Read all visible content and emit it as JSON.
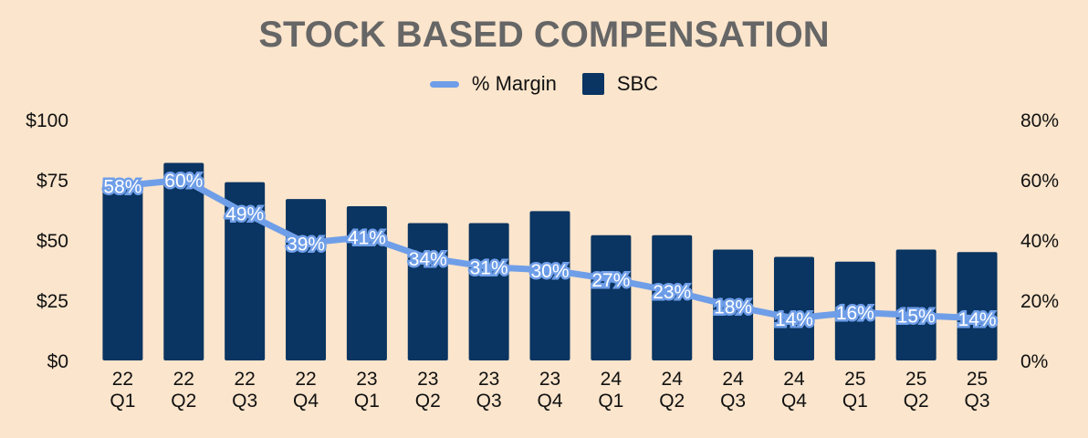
{
  "chart_data": {
    "type": "bar",
    "title": "STOCK BASED COMPENSATION",
    "categories": [
      [
        "22",
        "Q1"
      ],
      [
        "22",
        "Q2"
      ],
      [
        "22",
        "Q3"
      ],
      [
        "22",
        "Q4"
      ],
      [
        "23",
        "Q1"
      ],
      [
        "23",
        "Q2"
      ],
      [
        "23",
        "Q3"
      ],
      [
        "23",
        "Q4"
      ],
      [
        "24",
        "Q1"
      ],
      [
        "24",
        "Q2"
      ],
      [
        "24",
        "Q3"
      ],
      [
        "24",
        "Q4"
      ],
      [
        "25",
        "Q1"
      ],
      [
        "25",
        "Q2"
      ],
      [
        "25",
        "Q3"
      ]
    ],
    "series": [
      {
        "name": "SBC",
        "type": "bar",
        "axis": "left",
        "color": "#0a3461",
        "values": [
          71,
          82,
          74,
          67,
          64,
          57,
          57,
          62,
          52,
          52,
          46,
          43,
          41,
          46,
          45
        ]
      },
      {
        "name": "% Margin",
        "type": "line",
        "axis": "right",
        "color": "#6f9ee8",
        "values": [
          58,
          60,
          49,
          39,
          41,
          34,
          31,
          30,
          27,
          23,
          18,
          14,
          16,
          15,
          14
        ],
        "labels": [
          "58%",
          "60%",
          "49%",
          "39%",
          "41%",
          "34%",
          "31%",
          "30%",
          "27%",
          "23%",
          "18%",
          "14%",
          "16%",
          "15%",
          "14%"
        ]
      }
    ],
    "y_left": {
      "ylim": [
        0,
        100
      ],
      "ticks": [
        "$0",
        "$25",
        "$50",
        "$75",
        "$100"
      ],
      "tick_values": [
        0,
        25,
        50,
        75,
        100
      ]
    },
    "y_right": {
      "ylim": [
        0,
        80
      ],
      "ticks": [
        "0%",
        "20%",
        "40%",
        "60%",
        "80%"
      ],
      "tick_values": [
        0,
        20,
        40,
        60,
        80
      ]
    },
    "legend": {
      "position": "top-center",
      "items": [
        "% Margin",
        "SBC"
      ]
    },
    "grid": false
  },
  "colors": {
    "background": "#fbe5cc",
    "title": "#666666"
  }
}
